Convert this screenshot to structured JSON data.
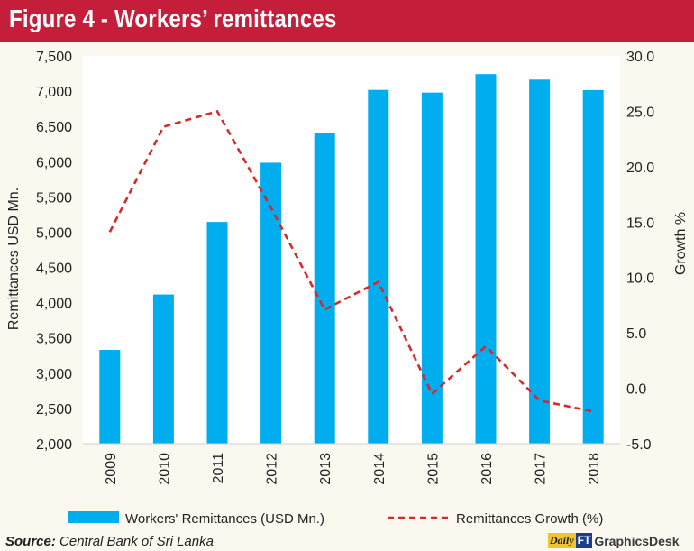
{
  "title": "Figure 4 - Workers’ remittances",
  "source": {
    "label": "Source:",
    "text": "Central Bank of Sri Lanka"
  },
  "brand": {
    "part1": "Daily",
    "part2": "FT",
    "part3": "GraphicsDesk"
  },
  "colors": {
    "bar": "#00aeef",
    "line": "#d62a2a",
    "header": "#c41e3a",
    "background": "#fbf8ef"
  },
  "chart_data": {
    "type": "bar",
    "title": "Figure 4 - Workers’ remittances",
    "categories": [
      "2009",
      "2010",
      "2011",
      "2012",
      "2013",
      "2014",
      "2015",
      "2016",
      "2017",
      "2018"
    ],
    "series": [
      {
        "name": "Workers' Remittances (USD Mn.)",
        "type": "bar",
        "axis": "left",
        "values": [
          3330,
          4116,
          5145,
          5985,
          6407,
          7018,
          6980,
          7242,
          7164,
          7015
        ]
      },
      {
        "name": "Remittances Growth (%)",
        "type": "line",
        "style": "dashed",
        "axis": "right",
        "values": [
          14.1,
          23.6,
          25.0,
          16.3,
          7.1,
          9.6,
          -0.5,
          3.8,
          -1.1,
          -2.1
        ]
      }
    ],
    "ylabel": "Remittances USD Mn.",
    "y2label": "Growth %",
    "ylim": [
      2000,
      7500
    ],
    "y2lim": [
      -5,
      30
    ],
    "yticks": [
      "2,000",
      "2,500",
      "3,000",
      "3,500",
      "4,000",
      "4,500",
      "5,000",
      "5,500",
      "6,000",
      "6,500",
      "7,000",
      "7,500"
    ],
    "y2ticks": [
      "-5.0",
      "0.0",
      "5.0",
      "10.0",
      "15.0",
      "20.0",
      "25.0",
      "30.0"
    ],
    "grid": false,
    "legend": "bottom"
  }
}
